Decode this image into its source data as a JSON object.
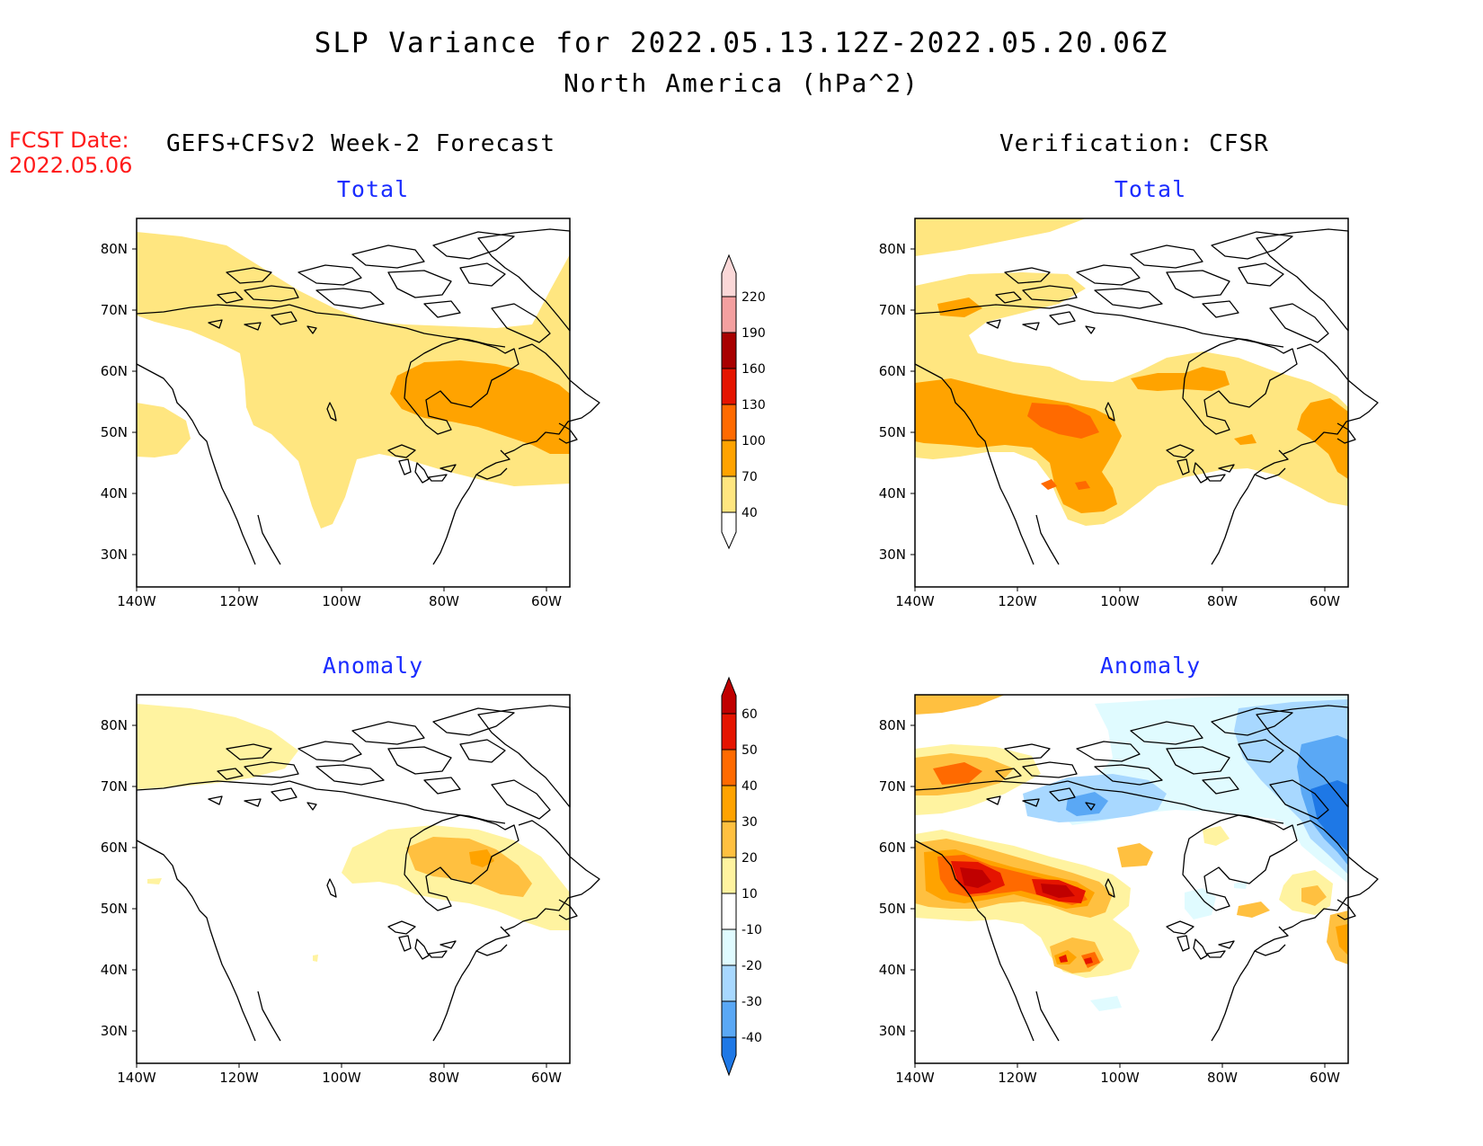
{
  "header": {
    "title": "SLP Variance for 2022.05.13.12Z-2022.05.20.06Z",
    "subtitle": "North America (hPa^2)",
    "fcst_label": "FCST Date:",
    "fcst_date": "2022.05.06"
  },
  "columns": {
    "left_title": "GEFS+CFSv2 Week-2 Forecast",
    "right_title": "Verification: CFSR"
  },
  "panels": {
    "fc_total_title": "Total",
    "ver_total_title": "Total",
    "fc_anom_title": "Anomaly",
    "ver_anom_title": "Anomaly"
  },
  "axes": {
    "lat_labels": [
      "80N",
      "70N",
      "60N",
      "50N",
      "40N",
      "30N"
    ],
    "lon_labels": [
      "140W",
      "120W",
      "100W",
      "80W",
      "60W"
    ]
  },
  "colorbars": {
    "total": {
      "levels": [
        "40",
        "70",
        "100",
        "130",
        "160",
        "190",
        "220"
      ],
      "colors": [
        "#ffe680",
        "#ffa300",
        "#ff6a00",
        "#e51400",
        "#a80000",
        "#f4a0a0",
        "#fbd8d8"
      ]
    },
    "anomaly": {
      "levels": [
        "60",
        "50",
        "40",
        "30",
        "20",
        "10",
        "-10",
        "-20",
        "-30",
        "-40"
      ],
      "colors_top_to_bottom": [
        "#c00000",
        "#e51400",
        "#ff6a00",
        "#ffa300",
        "#ffc040",
        "#fff3a0",
        "#ffffff",
        "#e0fbff",
        "#a8d8ff",
        "#5aa8f5",
        "#1e78e6",
        "#1e78e6"
      ]
    }
  }
}
